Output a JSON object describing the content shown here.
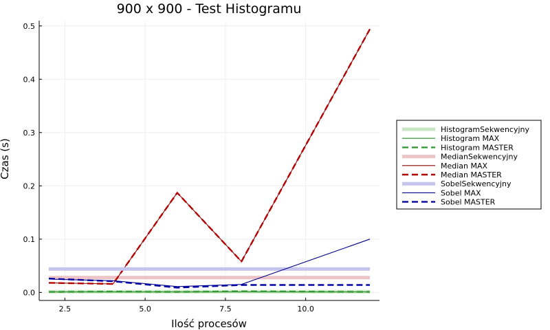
{
  "chart_data": {
    "type": "line",
    "title": "900 x 900 - Test Histogramu",
    "xlabel": "Ilość procesów",
    "ylabel": "Czas (s)",
    "xlim": [
      1.7,
      12.3
    ],
    "ylim": [
      -0.015,
      0.51
    ],
    "xticks": [
      2.5,
      5.0,
      7.5,
      10.0
    ],
    "xtick_labels": [
      "2.5",
      "5.0",
      "7.5",
      "10.0"
    ],
    "yticks": [
      0.0,
      0.1,
      0.2,
      0.3,
      0.4,
      0.5
    ],
    "ytick_labels": [
      "0.0",
      "0.1",
      "0.2",
      "0.3",
      "0.4",
      "0.5"
    ],
    "grid": true,
    "legend_position": "right",
    "x": [
      2,
      4,
      6,
      8,
      12
    ],
    "series": [
      {
        "name": "HistogramSekwencyjny",
        "style": "thick-light",
        "color": "#c8e6c4",
        "values": [
          0.0015,
          0.0015,
          0.0015,
          0.0015,
          0.0015
        ]
      },
      {
        "name": "Histogram MAX",
        "style": "thin",
        "color": "#228b22",
        "values": [
          0.001,
          0.001,
          0.001,
          0.001,
          0.001
        ]
      },
      {
        "name": "Histogram MASTER",
        "style": "dashed",
        "color": "#339933",
        "values": [
          0.001,
          0.0015,
          0.001,
          0.002,
          0.001
        ]
      },
      {
        "name": "MedianSekwencyjny",
        "style": "thick-light",
        "color": "#ecc4c8",
        "values": [
          0.028,
          0.028,
          0.028,
          0.028,
          0.028
        ]
      },
      {
        "name": "Median MAX",
        "style": "thin",
        "color": "#8b0000",
        "values": [
          0.018,
          0.016,
          0.187,
          0.058,
          0.494
        ]
      },
      {
        "name": "Median MASTER",
        "style": "dashed",
        "color": "#b30000",
        "values": [
          0.018,
          0.016,
          0.187,
          0.058,
          0.494
        ]
      },
      {
        "name": "SobelSekwencyjny",
        "style": "thick-light",
        "color": "#c4c4ec",
        "values": [
          0.044,
          0.044,
          0.044,
          0.044,
          0.044
        ]
      },
      {
        "name": "Sobel MAX",
        "style": "thin",
        "color": "#00008b",
        "values": [
          0.025,
          0.022,
          0.011,
          0.015,
          0.1
        ]
      },
      {
        "name": "Sobel MASTER",
        "style": "dashed",
        "color": "#0000a0",
        "values": [
          0.026,
          0.021,
          0.009,
          0.014,
          0.014
        ]
      }
    ]
  }
}
